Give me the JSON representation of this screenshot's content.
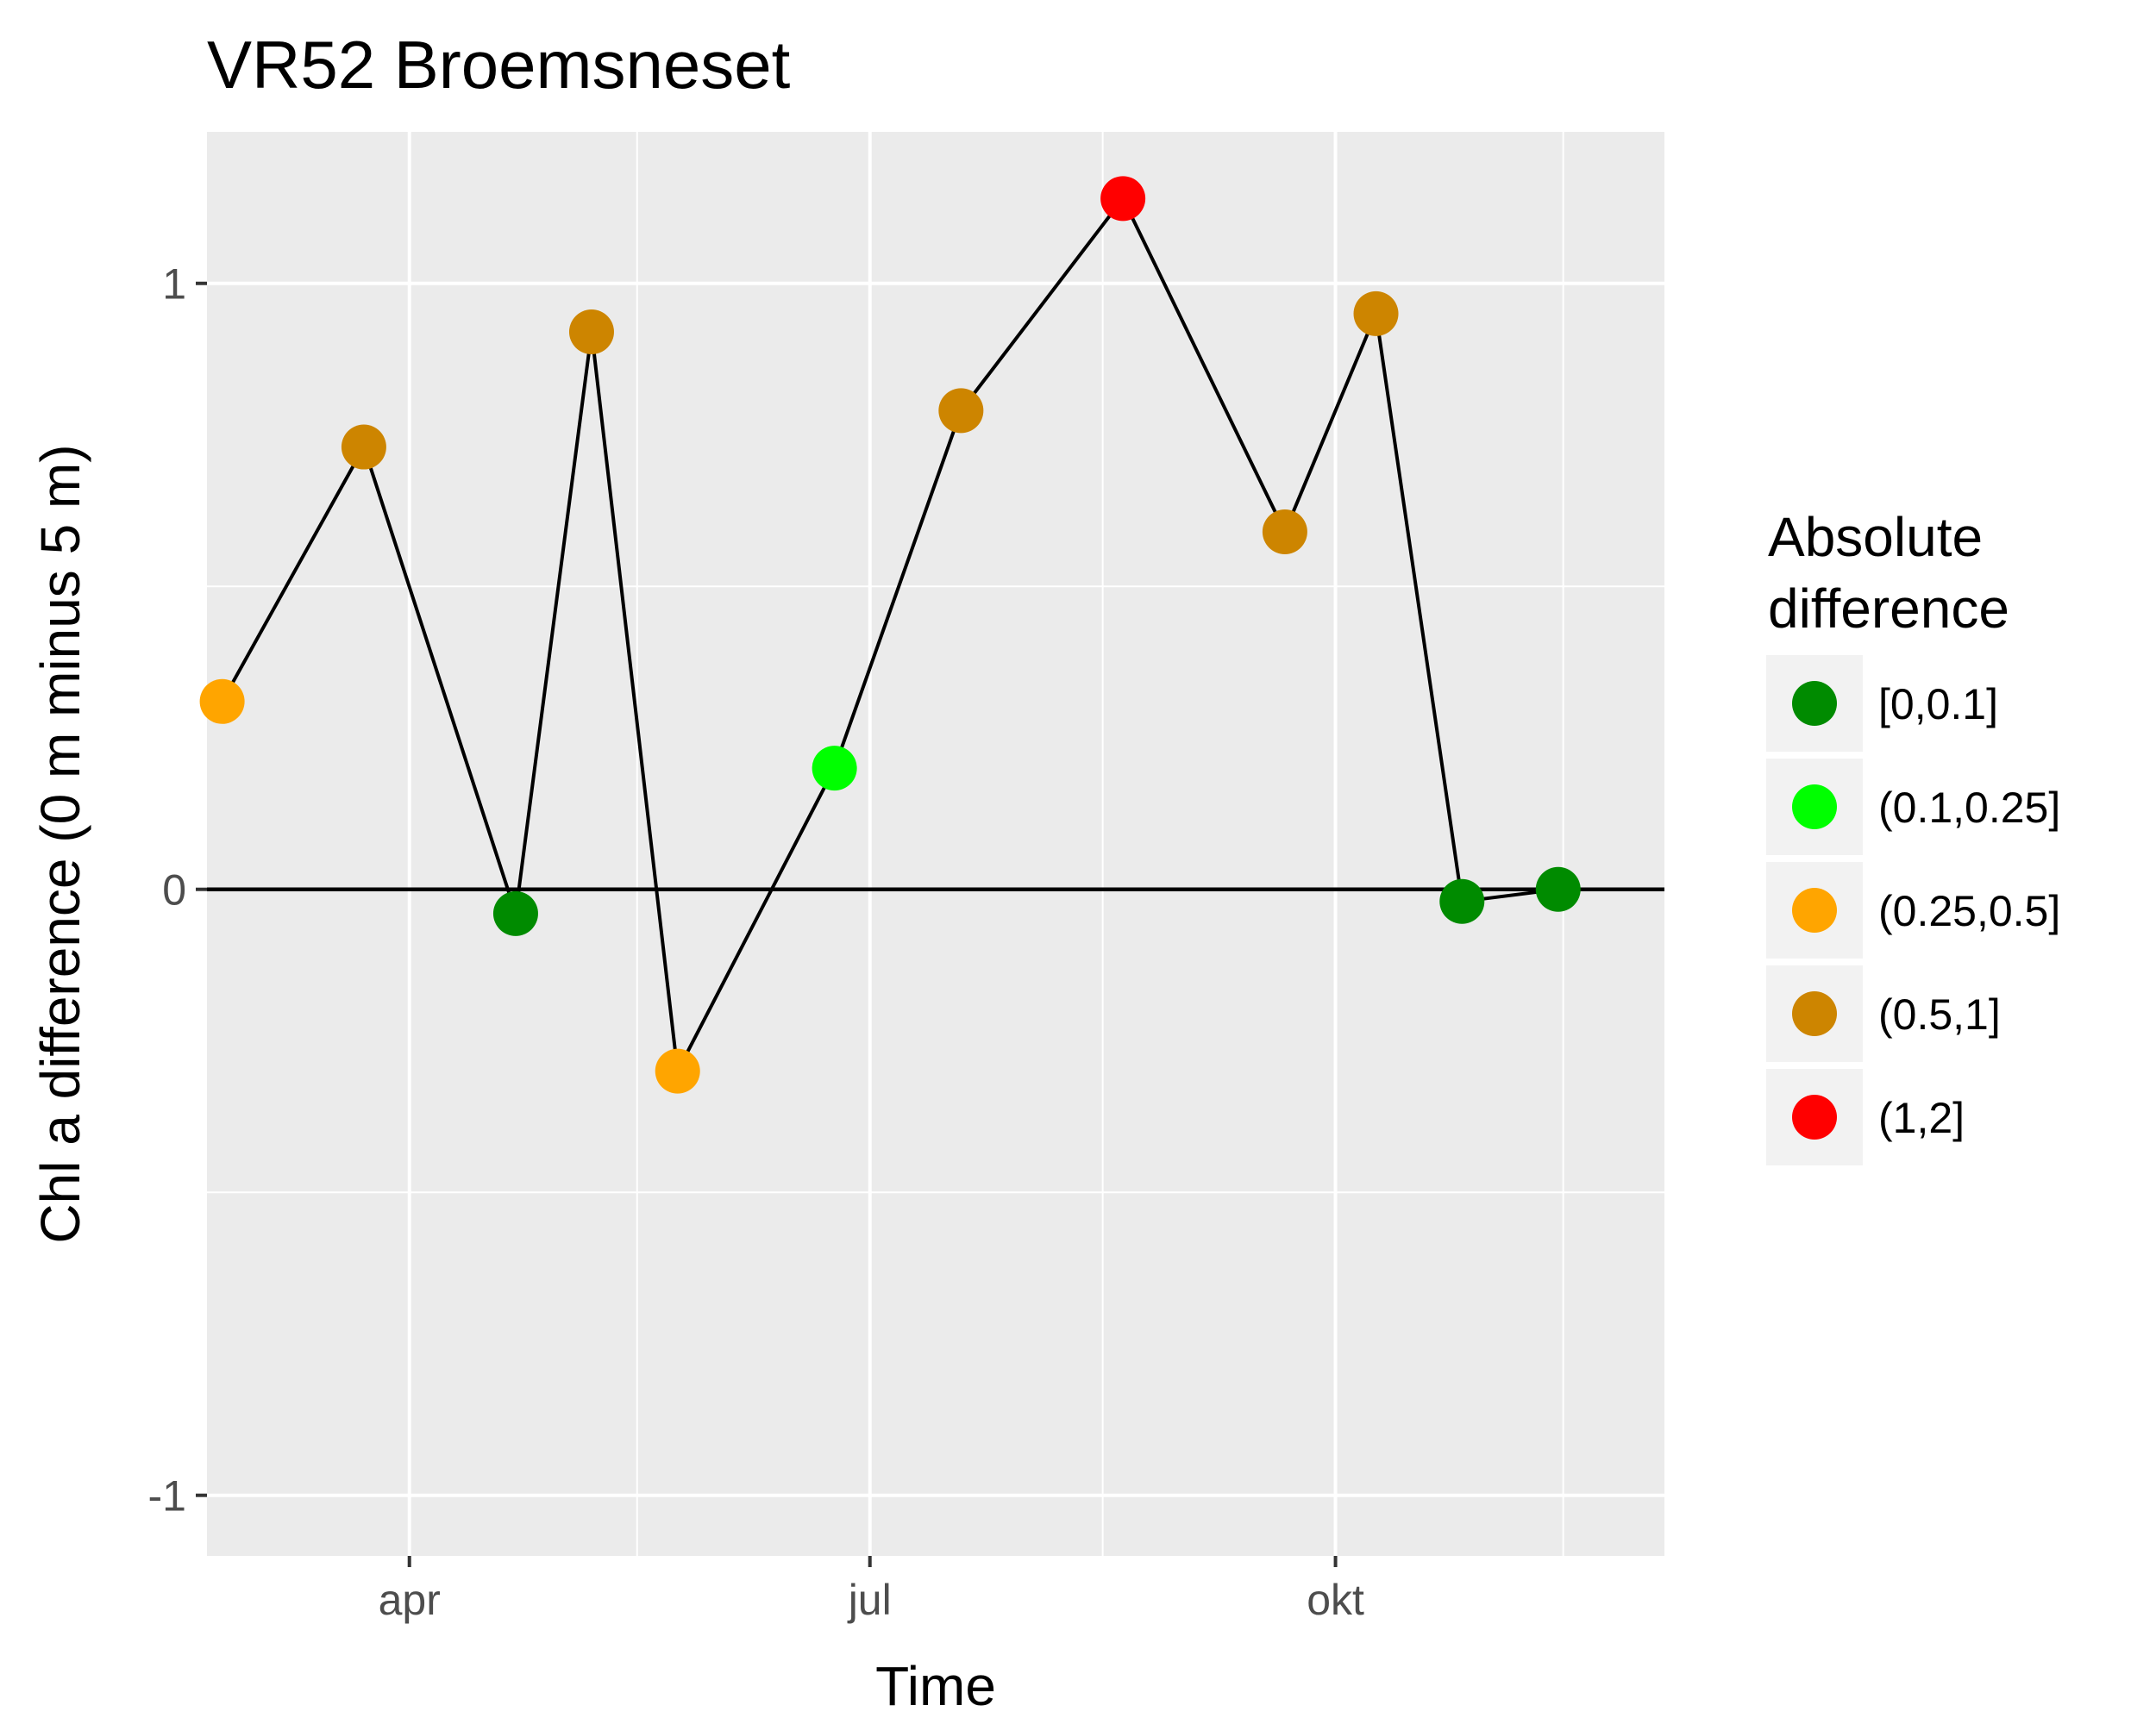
{
  "chart_data": {
    "type": "scatter",
    "title": "VR52 Broemsneset",
    "xlabel": "Time",
    "ylabel": "Chl a difference (0 m minus 5 m)",
    "x_ticks": [
      {
        "label": "apr",
        "value": "2017-04-01"
      },
      {
        "label": "jul",
        "value": "2017-07-01"
      },
      {
        "label": "okt",
        "value": "2017-10-01"
      }
    ],
    "y_ticks": [
      {
        "label": "-1",
        "value": -1
      },
      {
        "label": "0",
        "value": 0
      },
      {
        "label": "1",
        "value": 1
      }
    ],
    "xlim": [
      "2017-02-20",
      "2017-12-05"
    ],
    "ylim": [
      -1.1,
      1.25
    ],
    "grid": true,
    "zero_line": true,
    "legend": {
      "title_lines": [
        "Absolute",
        "difference"
      ],
      "position": "right",
      "items": [
        {
          "label": "[0,0.1]",
          "color": "#008b00"
        },
        {
          "label": "(0.1,0.25]",
          "color": "#00ff00"
        },
        {
          "label": "(0.25,0.5]",
          "color": "#ffa500"
        },
        {
          "label": "(0.5,1]",
          "color": "#cd8500"
        },
        {
          "label": "(1,2]",
          "color": "#ff0000"
        }
      ]
    },
    "points": [
      {
        "date": "2017-02-23",
        "y": 0.31,
        "class": "(0.25,0.5]"
      },
      {
        "date": "2017-03-23",
        "y": 0.73,
        "class": "(0.5,1]"
      },
      {
        "date": "2017-04-22",
        "y": -0.04,
        "class": "[0,0.1]"
      },
      {
        "date": "2017-05-07",
        "y": 0.92,
        "class": "(0.5,1]"
      },
      {
        "date": "2017-05-24",
        "y": -0.3,
        "class": "(0.25,0.5]"
      },
      {
        "date": "2017-06-24",
        "y": 0.2,
        "class": "(0.1,0.25]"
      },
      {
        "date": "2017-07-19",
        "y": 0.79,
        "class": "(0.5,1]"
      },
      {
        "date": "2017-08-20",
        "y": 1.14,
        "class": "(1,2]"
      },
      {
        "date": "2017-09-21",
        "y": 0.59,
        "class": "(0.5,1]"
      },
      {
        "date": "2017-10-09",
        "y": 0.95,
        "class": "(0.5,1]"
      },
      {
        "date": "2017-10-26",
        "y": -0.02,
        "class": "[0,0.1]"
      },
      {
        "date": "2017-11-14",
        "y": 0.0,
        "class": "[0,0.1]"
      }
    ]
  }
}
